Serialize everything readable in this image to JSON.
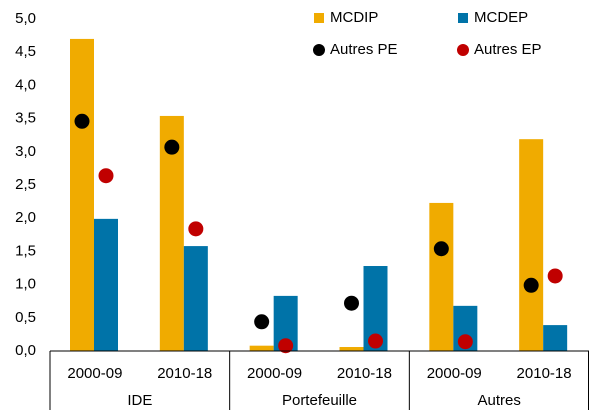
{
  "chart_data": {
    "type": "bar",
    "categories": [
      "2000-09",
      "2010-18",
      "2000-09",
      "2010-18",
      "2000-09",
      "2010-18"
    ],
    "groups": [
      "IDE",
      "Portefeuille",
      "Autres"
    ],
    "series": [
      {
        "name": "MCDIP",
        "type": "bar",
        "color": "#f0ab00",
        "values": [
          4.7,
          3.54,
          0.08,
          0.06,
          2.23,
          3.19
        ]
      },
      {
        "name": "MCDEP",
        "type": "bar",
        "color": "#0073a8",
        "values": [
          1.99,
          1.58,
          0.83,
          1.28,
          0.68,
          0.39
        ]
      },
      {
        "name": "Autres PE",
        "type": "scatter",
        "color": "#000000",
        "values": [
          3.46,
          3.07,
          0.44,
          0.72,
          1.54,
          0.99
        ]
      },
      {
        "name": "Autres EP",
        "type": "scatter",
        "color": "#c00000",
        "values": [
          2.64,
          1.84,
          0.08,
          0.15,
          0.14,
          1.13
        ]
      }
    ],
    "ylim": [
      0,
      5
    ],
    "yticks": [
      {
        "value": 0,
        "label": "0,0"
      },
      {
        "value": 0.5,
        "label": "0,5"
      },
      {
        "value": 1,
        "label": "1,0"
      },
      {
        "value": 1.5,
        "label": "1,5"
      },
      {
        "value": 2,
        "label": "2,0"
      },
      {
        "value": 2.5,
        "label": "2,5"
      },
      {
        "value": 3,
        "label": "3,0"
      },
      {
        "value": 3.5,
        "label": "3,5"
      },
      {
        "value": 4,
        "label": "4,0"
      },
      {
        "value": 4.5,
        "label": "4,5"
      },
      {
        "value": 5,
        "label": "5,0"
      }
    ],
    "legend": "upper right"
  }
}
